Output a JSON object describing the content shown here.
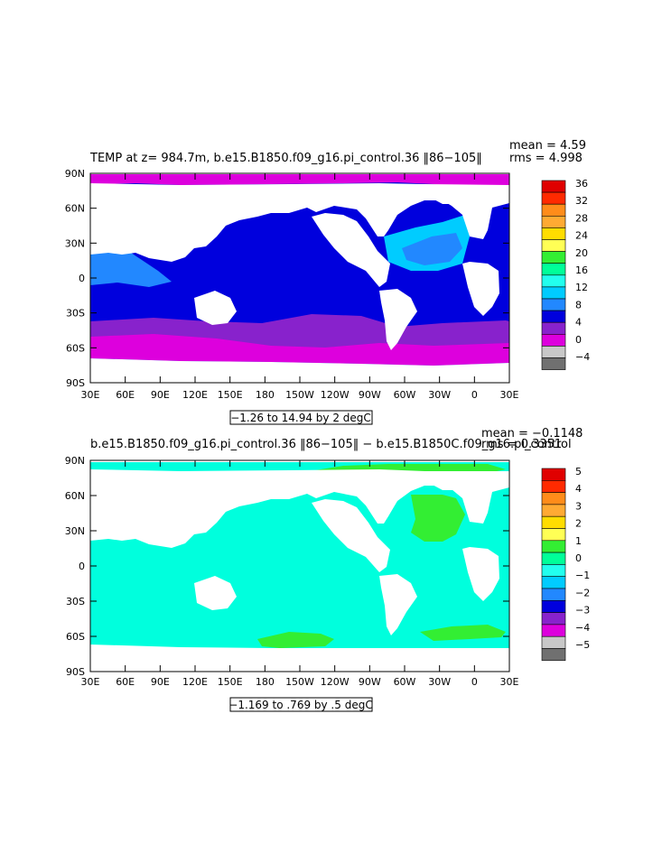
{
  "panels": [
    {
      "title": "TEMP at z= 984.7m, b.e15.B1850.f09_g16.pi_control.36 ‖86−105‖",
      "stats": [
        "mean = 4.59",
        "rms = 4.998"
      ],
      "range_label": "−1.26 to 14.94 by 2 degC",
      "colorbar_labels": [
        "36",
        "32",
        "28",
        "24",
        "20",
        "16",
        "12",
        "8",
        "4",
        "0",
        "−4"
      ],
      "colorbar_colors": [
        "#e00000",
        "#ff2a00",
        "#ff8c1a",
        "#ffaa33",
        "#ffdd00",
        "#ffff55",
        "#33ee33",
        "#00ff99",
        "#22ffee",
        "#00ccff",
        "#2288ff",
        "#0000dd",
        "#8822cc",
        "#dd00dd",
        "#c8c8c8",
        "#707070"
      ]
    },
    {
      "title": "b.e15.B1850.f09_g16.pi_control.36 ‖86−105‖ − b.e15.B1850C.f09_g16.pi_control",
      "stats": [
        "mean = −0.1148",
        "rms = 0.3351"
      ],
      "range_label": "−1.169 to .769 by .5 degC",
      "colorbar_labels": [
        "5",
        "4",
        "3",
        "2",
        "1",
        "0",
        "−1",
        "−2",
        "−3",
        "−4",
        "−5"
      ],
      "colorbar_colors": [
        "#e00000",
        "#ff2a00",
        "#ff8c1a",
        "#ffaa33",
        "#ffdd00",
        "#ffff55",
        "#33ee33",
        "#00ff99",
        "#22ffee",
        "#00ccff",
        "#2288ff",
        "#0000dd",
        "#8822cc",
        "#dd00dd",
        "#c8c8c8",
        "#707070"
      ]
    }
  ],
  "lat_ticks": [
    "90N",
    "60N",
    "30N",
    "0",
    "30S",
    "60S",
    "90S"
  ],
  "lon_ticks": [
    "30E",
    "60E",
    "90E",
    "120E",
    "150E",
    "180",
    "150W",
    "120W",
    "90W",
    "60W",
    "30W",
    "0",
    "30E"
  ],
  "colors": {
    "panel1_deep": "#0000dd",
    "panel1_band": "#8822cc",
    "panel1_polar": "#dd00dd",
    "panel1_warm": "#00ccff",
    "panel1_mid": "#2288ff",
    "panel2_base": "#00ffdd",
    "panel2_positive": "#33ee33"
  }
}
